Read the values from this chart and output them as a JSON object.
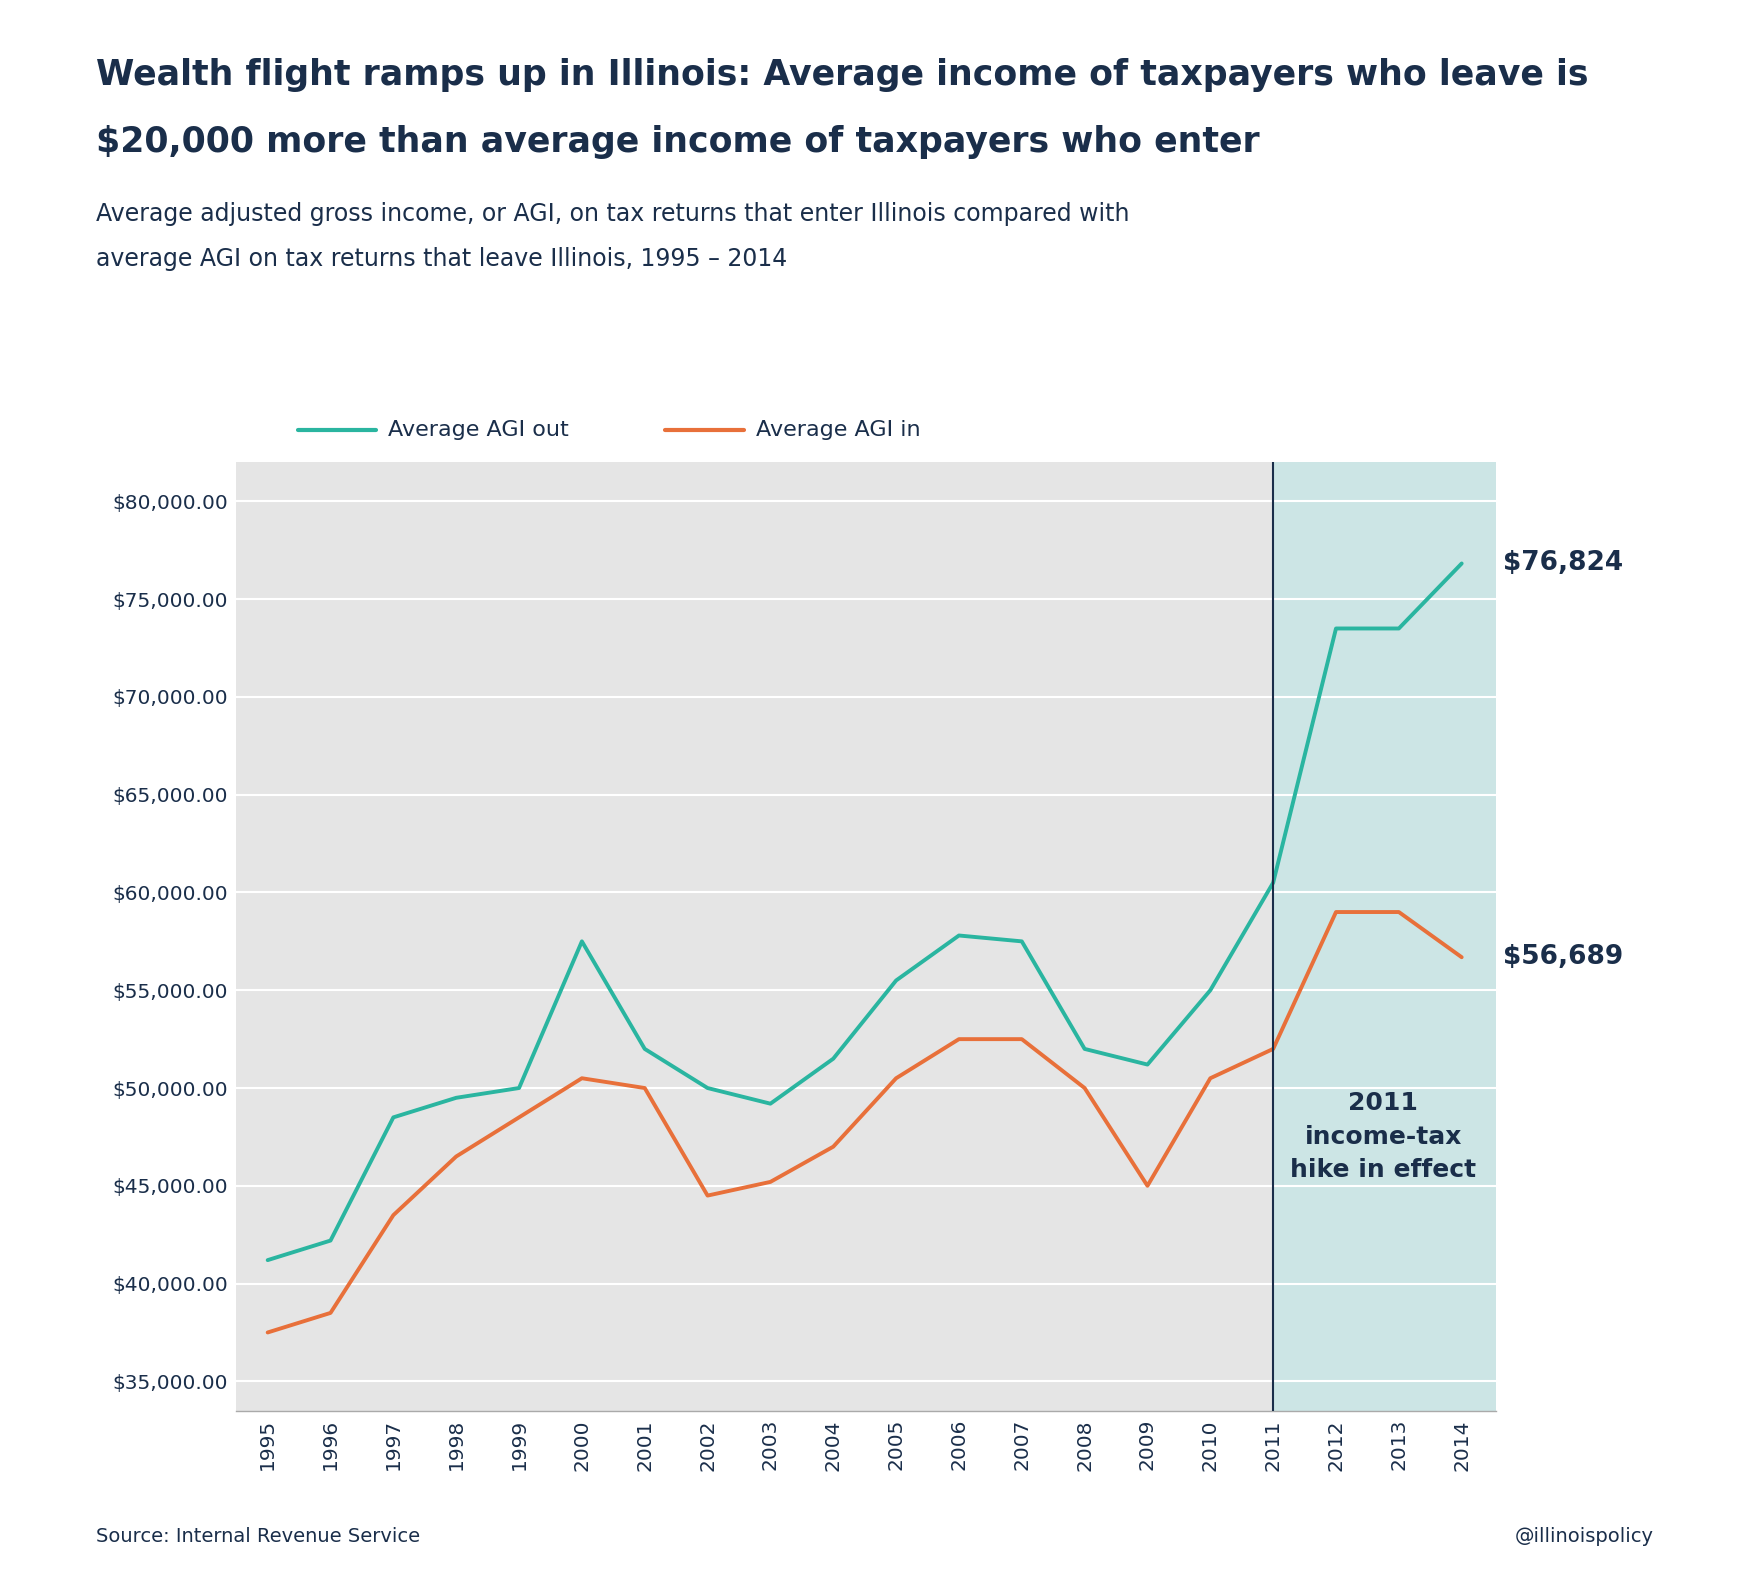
{
  "title_line1": "Wealth flight ramps up in Illinois: Average income of taxpayers who leave is",
  "title_line2": "$20,000 more than average income of taxpayers who enter",
  "subtitle_line1": "Average adjusted gross income, or AGI, on tax returns that enter Illinois compared with",
  "subtitle_line2": "average AGI on tax returns that leave Illinois, 1995 – 2014",
  "years": [
    1995,
    1996,
    1997,
    1998,
    1999,
    2000,
    2001,
    2002,
    2003,
    2004,
    2005,
    2006,
    2007,
    2008,
    2009,
    2010,
    2011,
    2012,
    2013,
    2014
  ],
  "agi_out": [
    41200,
    42200,
    48500,
    49500,
    50000,
    57500,
    52000,
    50000,
    49200,
    51500,
    55500,
    57800,
    57500,
    52000,
    51200,
    55000,
    60500,
    73500,
    73500,
    76824
  ],
  "agi_in": [
    37500,
    38500,
    43500,
    46500,
    48500,
    50500,
    50000,
    44500,
    45200,
    47000,
    50500,
    52500,
    52500,
    50000,
    45000,
    50500,
    52000,
    59000,
    59000,
    56689
  ],
  "color_out": "#2ab5a0",
  "color_in": "#e8703a",
  "highlight_bg": "#cce5e5",
  "plot_bg": "#e5e5e5",
  "grid_color": "#ffffff",
  "title_color": "#1a2e4a",
  "axis_color": "#1a2e4a",
  "vline_x": 2011,
  "label_out_final": "$76,824",
  "label_in_final": "$56,689",
  "annotation_text": "2011\nincome-tax\nhike in effect",
  "source_text": "Source: Internal Revenue Service",
  "credit_text": "@illinoispolicy",
  "legend_label_out": "Average AGI out",
  "legend_label_in": "Average AGI in",
  "ylim_min": 33500,
  "ylim_max": 82000,
  "yticks": [
    35000,
    40000,
    45000,
    50000,
    55000,
    60000,
    65000,
    70000,
    75000,
    80000
  ]
}
